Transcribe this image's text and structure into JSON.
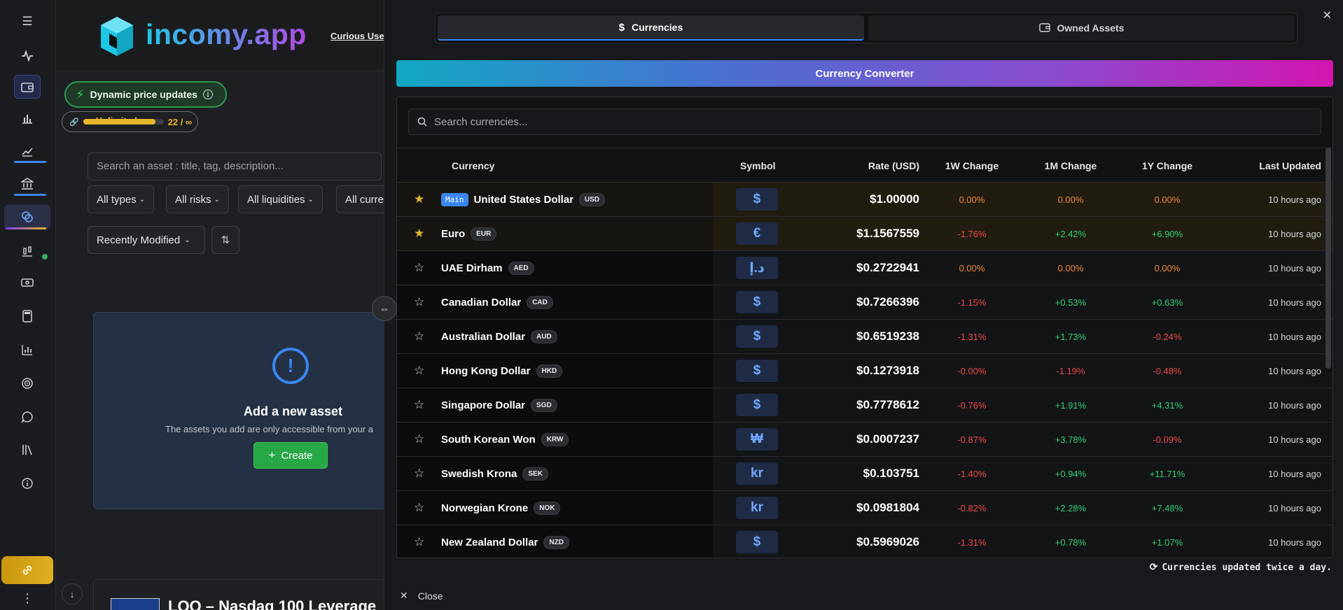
{
  "sidebar": {
    "icons": [
      "menu-icon",
      "activity-icon",
      "wallet-icon",
      "bar-chart-icon",
      "chart-edit-icon",
      "bank-icon",
      "currency-exchange-icon",
      "chart-candles-icon",
      "cash-icon",
      "calculator-icon",
      "stats-icon",
      "target-icon",
      "chat-icon",
      "library-icon",
      "info-icon"
    ],
    "link_icon": "link-icon",
    "more_icon": "⋮"
  },
  "main": {
    "brand": "incomy.app",
    "curious_link": "Curious Use",
    "dynamic_badge": "Dynamic price updates",
    "plan_label": "Unlimited",
    "plan_count": "22 / ∞",
    "plan_fill": 0.9,
    "search_placeholder": "Search an asset : title, tag, description...",
    "filters": [
      "All types",
      "All risks",
      "All liquidities",
      "All curre"
    ],
    "sort_label": "Recently Modified",
    "add_title": "Add a new asset",
    "add_desc": "The assets you add are only accessible from your a",
    "create_label": "Create",
    "bottom_title": "LQQ – Nasdaq 100 Leverage"
  },
  "panel": {
    "tab_currencies": "Currencies",
    "tab_owned": "Owned Assets",
    "converter_label": "Currency Converter",
    "search_placeholder": "Search currencies...",
    "headers": {
      "currency": "Currency",
      "symbol": "Symbol",
      "rate": "Rate (USD)",
      "w1": "1W Change",
      "m1": "1M Change",
      "y1": "1Y Change",
      "updated": "Last Updated"
    },
    "main_tag": "Main",
    "rows": [
      {
        "fav": true,
        "main": true,
        "name": "United States Dollar",
        "code": "USD",
        "symbol": "$",
        "rate": "$1.00000",
        "w1": "0.00%",
        "m1": "0.00%",
        "y1": "0.00%",
        "updated": "10 hours ago"
      },
      {
        "fav": true,
        "main": false,
        "name": "Euro",
        "code": "EUR",
        "symbol": "€",
        "rate": "$1.1567559",
        "w1": "-1.76%",
        "m1": "+2.42%",
        "y1": "+6.90%",
        "updated": "10 hours ago"
      },
      {
        "fav": false,
        "main": false,
        "name": "UAE Dirham",
        "code": "AED",
        "symbol": "د.إ",
        "rate": "$0.2722941",
        "w1": "0.00%",
        "m1": "0.00%",
        "y1": "0.00%",
        "updated": "10 hours ago"
      },
      {
        "fav": false,
        "main": false,
        "name": "Canadian Dollar",
        "code": "CAD",
        "symbol": "$",
        "rate": "$0.7266396",
        "w1": "-1.15%",
        "m1": "+0.53%",
        "y1": "+0.63%",
        "updated": "10 hours ago"
      },
      {
        "fav": false,
        "main": false,
        "name": "Australian Dollar",
        "code": "AUD",
        "symbol": "$",
        "rate": "$0.6519238",
        "w1": "-1.31%",
        "m1": "+1.73%",
        "y1": "-0.24%",
        "updated": "10 hours ago"
      },
      {
        "fav": false,
        "main": false,
        "name": "Hong Kong Dollar",
        "code": "HKD",
        "symbol": "$",
        "rate": "$0.1273918",
        "w1": "-0.00%",
        "m1": "-1.19%",
        "y1": "-0.48%",
        "updated": "10 hours ago"
      },
      {
        "fav": false,
        "main": false,
        "name": "Singapore Dollar",
        "code": "SGD",
        "symbol": "$",
        "rate": "$0.7778612",
        "w1": "-0.76%",
        "m1": "+1.91%",
        "y1": "+4.31%",
        "updated": "10 hours ago"
      },
      {
        "fav": false,
        "main": false,
        "name": "South Korean Won",
        "code": "KRW",
        "symbol": "₩",
        "rate": "$0.0007237",
        "w1": "-0.87%",
        "m1": "+3.78%",
        "y1": "-0.09%",
        "updated": "10 hours ago"
      },
      {
        "fav": false,
        "main": false,
        "name": "Swedish Krona",
        "code": "SEK",
        "symbol": "kr",
        "rate": "$0.103751",
        "w1": "-1.40%",
        "m1": "+0.94%",
        "y1": "+11.71%",
        "updated": "10 hours ago"
      },
      {
        "fav": false,
        "main": false,
        "name": "Norwegian Krone",
        "code": "NOK",
        "symbol": "kr",
        "rate": "$0.0981804",
        "w1": "-0.82%",
        "m1": "+2.28%",
        "y1": "+7.48%",
        "updated": "10 hours ago"
      },
      {
        "fav": false,
        "main": false,
        "name": "New Zealand Dollar",
        "code": "NZD",
        "symbol": "$",
        "rate": "$0.5969026",
        "w1": "-1.31%",
        "m1": "+0.78%",
        "y1": "+1.07%",
        "updated": "10 hours ago"
      }
    ],
    "update_note": "Currencies updated twice a day.",
    "close_label": "Close"
  },
  "colors": {
    "accent": "#3a86f0",
    "positive": "#33d17a",
    "negative": "#ef4b4b",
    "neutral": "#f08a3c",
    "favorite": "#e6b62b"
  }
}
